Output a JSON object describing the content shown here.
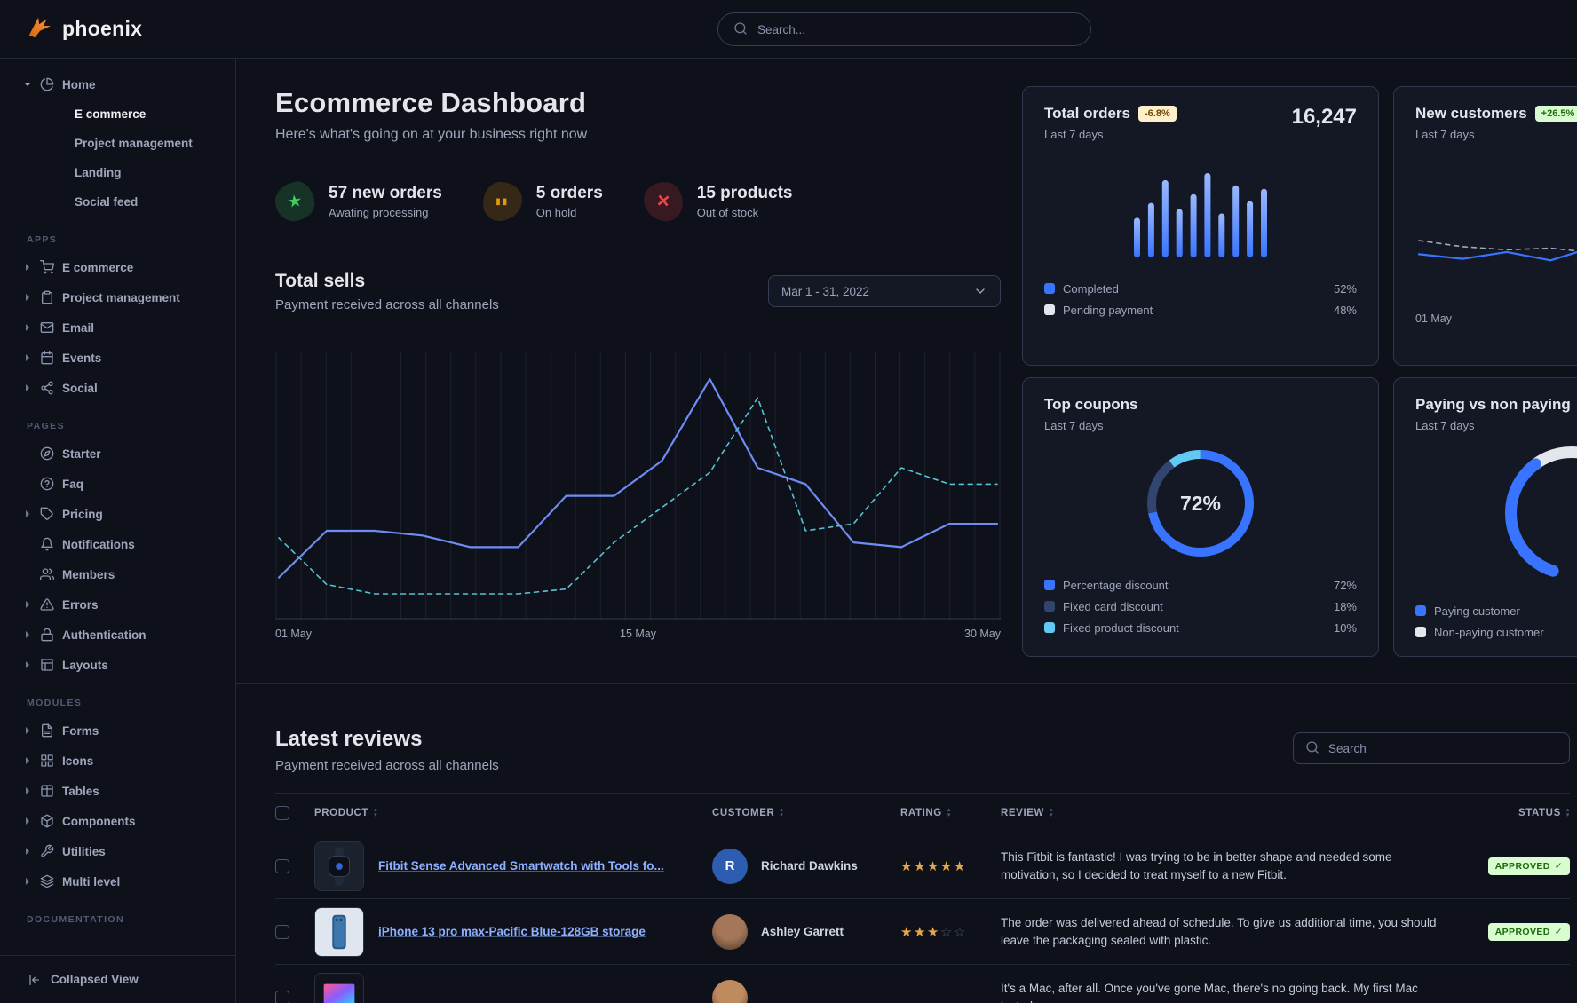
{
  "navbar": {
    "brand": "phoenix",
    "logo_icon": "phoenix-flame",
    "search": {
      "placeholder": "Search...",
      "icon": "search"
    }
  },
  "sidebar": {
    "groups": [
      {
        "label": "",
        "items": [
          {
            "label": "Home",
            "icon": "pie-chart",
            "caret": "down",
            "children": [
              {
                "label": "E commerce",
                "active": true
              },
              {
                "label": "Project management",
                "active": false
              },
              {
                "label": "Landing",
                "active": false
              },
              {
                "label": "Social feed",
                "active": false
              }
            ]
          }
        ]
      },
      {
        "label": "APPS",
        "items": [
          {
            "label": "E commerce",
            "icon": "shopping-cart",
            "caret": "right"
          },
          {
            "label": "Project management",
            "icon": "clipboard",
            "caret": "right"
          },
          {
            "label": "Email",
            "icon": "mail",
            "caret": "right"
          },
          {
            "label": "Events",
            "icon": "calendar",
            "caret": "right"
          },
          {
            "label": "Social",
            "icon": "share",
            "caret": "right"
          }
        ]
      },
      {
        "label": "PAGES",
        "items": [
          {
            "label": "Starter",
            "icon": "compass"
          },
          {
            "label": "Faq",
            "icon": "help-circle"
          },
          {
            "label": "Pricing",
            "icon": "tag",
            "caret": "right"
          },
          {
            "label": "Notifications",
            "icon": "bell"
          },
          {
            "label": "Members",
            "icon": "users"
          },
          {
            "label": "Errors",
            "icon": "alert-triangle",
            "caret": "right"
          },
          {
            "label": "Authentication",
            "icon": "lock",
            "caret": "right"
          },
          {
            "label": "Layouts",
            "icon": "layout",
            "caret": "right"
          }
        ]
      },
      {
        "label": "MODULES",
        "items": [
          {
            "label": "Forms",
            "icon": "file-text",
            "caret": "right"
          },
          {
            "label": "Icons",
            "icon": "grid",
            "caret": "right"
          },
          {
            "label": "Tables",
            "icon": "table",
            "caret": "right"
          },
          {
            "label": "Components",
            "icon": "package",
            "caret": "right"
          },
          {
            "label": "Utilities",
            "icon": "tool",
            "caret": "right"
          },
          {
            "label": "Multi level",
            "icon": "layers",
            "caret": "right"
          }
        ]
      },
      {
        "label": "DOCUMENTATION",
        "items": []
      }
    ],
    "footer": {
      "label": "Collapsed View",
      "icon": "collapse-left"
    }
  },
  "dashboard": {
    "title": "Ecommerce Dashboard",
    "subtitle": "Here's what's going on at your business right now",
    "stats": [
      {
        "value": "57 new orders",
        "caption": "Awating processing",
        "icon": "star",
        "color": "#3fcf5e"
      },
      {
        "value": "5 orders",
        "caption": "On hold",
        "icon": "pause",
        "color": "#e5980b"
      },
      {
        "value": "15 products",
        "caption": "Out of stock",
        "icon": "x",
        "color": "#ef4444"
      }
    ]
  },
  "total_sells": {
    "title": "Total sells",
    "subtitle": "Payment received across all channels",
    "date_range": "Mar 1 - 31, 2022",
    "chart_data": {
      "type": "line",
      "title": "Total sells",
      "x_labels": [
        "01 May",
        "15 May",
        "30 May"
      ],
      "x_range_days": 30,
      "grid": true,
      "ylim": [
        0,
        100
      ],
      "series": [
        {
          "name": "current",
          "style": "solid",
          "color": "#6d8df5",
          "values": [
            15,
            35,
            35,
            33,
            28,
            28,
            50,
            50,
            65,
            100,
            62,
            55,
            30,
            28,
            38,
            38
          ]
        },
        {
          "name": "previous",
          "style": "dashed",
          "color": "#56c2d6",
          "values": [
            32,
            12,
            8,
            8,
            8,
            8,
            10,
            30,
            45,
            60,
            92,
            35,
            38,
            62,
            55,
            55
          ]
        }
      ]
    }
  },
  "cards": {
    "total_orders": {
      "title": "Total orders",
      "badge": "-6.8%",
      "badge_color": "warning",
      "period": "Last 7 days",
      "value": "16,247",
      "chart_data": {
        "type": "bar",
        "values": [
          45,
          62,
          88,
          55,
          72,
          96,
          50,
          82,
          64,
          78
        ],
        "color": "#3874ff"
      },
      "legend": [
        {
          "label": "Completed",
          "value": "52%",
          "color": "#3874ff"
        },
        {
          "label": "Pending payment",
          "value": "48%",
          "color": "#e3e6ed"
        }
      ]
    },
    "new_customers": {
      "title": "New customers",
      "badge": "+26.5%",
      "badge_color": "success",
      "period": "Last 7 days",
      "x_label": "01 May",
      "chart_data": {
        "type": "line",
        "series": [
          {
            "name": "previous",
            "style": "dashed",
            "color": "#9fa6bc",
            "values": [
              70,
              62,
              58,
              60,
              54,
              50,
              54,
              47
            ]
          },
          {
            "name": "current",
            "style": "solid",
            "color": "#3874ff",
            "values": [
              52,
              46,
              55,
              44,
              62,
              80,
              55,
              70
            ]
          }
        ]
      }
    },
    "top_coupons": {
      "title": "Top coupons",
      "period": "Last 7 days",
      "center_value": "72%",
      "chart_data": {
        "type": "pie",
        "slices": [
          {
            "label": "Percentage discount",
            "value": 72,
            "color": "#3874ff"
          },
          {
            "label": "Fixed card discount",
            "value": 18,
            "color": "#31456e"
          },
          {
            "label": "Fixed product discount",
            "value": 10,
            "color": "#60c9f4"
          }
        ]
      }
    },
    "paying_vs_non_paying": {
      "title": "Paying vs non paying",
      "period": "Last 7 days",
      "chart_data": {
        "type": "gauge",
        "slices": [
          {
            "label": "Paying customer",
            "value": 65,
            "color": "#3874ff"
          },
          {
            "label": "Non-paying customer",
            "value": 35,
            "color": "#e3e6ed"
          }
        ]
      }
    }
  },
  "reviews": {
    "title": "Latest reviews",
    "subtitle": "Payment received across all channels",
    "search": {
      "placeholder": "Search",
      "icon": "search"
    },
    "columns": [
      "PRODUCT",
      "CUSTOMER",
      "RATING",
      "REVIEW",
      "STATUS"
    ],
    "rows": [
      {
        "product": "Fitbit Sense Advanced Smartwatch with Tools fo...",
        "thumb": "smartwatch",
        "customer": "Richard Dawkins",
        "avatar_type": "initial",
        "avatar_text": "R",
        "avatar_color": "#2c5db1",
        "rating": 5,
        "review": "This Fitbit is fantastic! I was trying to be in better shape and needed some motivation, so I decided to treat myself to a new Fitbit.",
        "status": "APPROVED"
      },
      {
        "product": "iPhone 13 pro max-Pacific Blue-128GB storage",
        "thumb": "phone",
        "customer": "Ashley Garrett",
        "avatar_type": "photo",
        "avatar_color": "#a4775a",
        "rating": 3,
        "review": "The order was delivered ahead of schedule. To give us additional time, you should leave the packaging sealed with plastic.",
        "status": "APPROVED"
      },
      {
        "product": "",
        "thumb": "laptop",
        "customer": "",
        "avatar_type": "photo",
        "avatar_color": "#c08a5f",
        "rating": 0,
        "review": "It's a Mac, after all. Once you've gone Mac, there's no going back. My first Mac lasted",
        "status": ""
      }
    ]
  }
}
